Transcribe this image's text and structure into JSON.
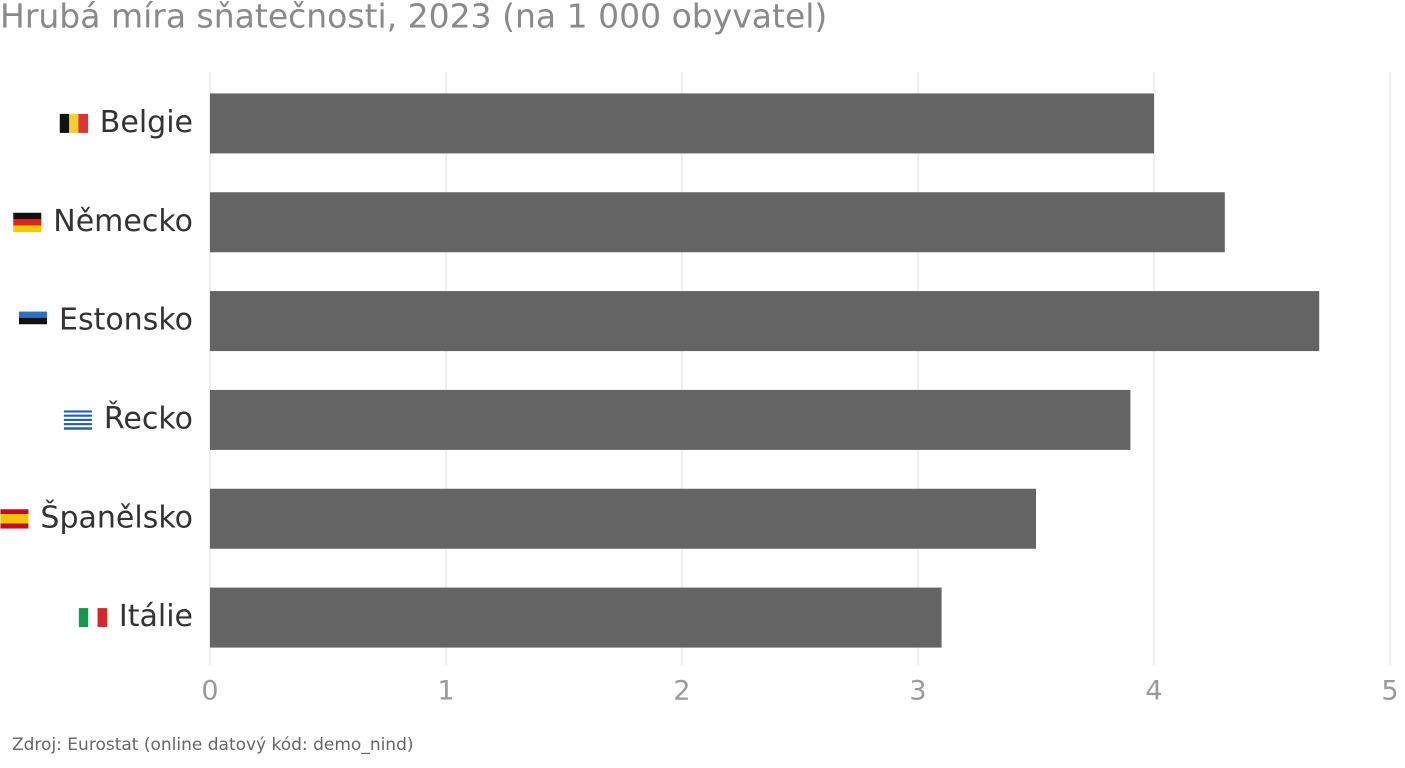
{
  "chart_data": {
    "type": "bar",
    "orientation": "horizontal",
    "title": "Hrubá míra sňatečnosti, 2023 (na 1 000 obyvatel)",
    "source": "Zdroj: Eurostat (online datový kód: demo_nind)",
    "categories": [
      "Belgie",
      "Německo",
      "Estonsko",
      "Řecko",
      "Španělsko",
      "Itálie"
    ],
    "values": [
      4.0,
      4.3,
      4.7,
      3.9,
      3.5,
      3.1
    ],
    "color": "#646464",
    "xlim": [
      0,
      5
    ],
    "xticks": [
      0,
      1,
      2,
      3,
      4,
      5
    ],
    "grid": true
  }
}
